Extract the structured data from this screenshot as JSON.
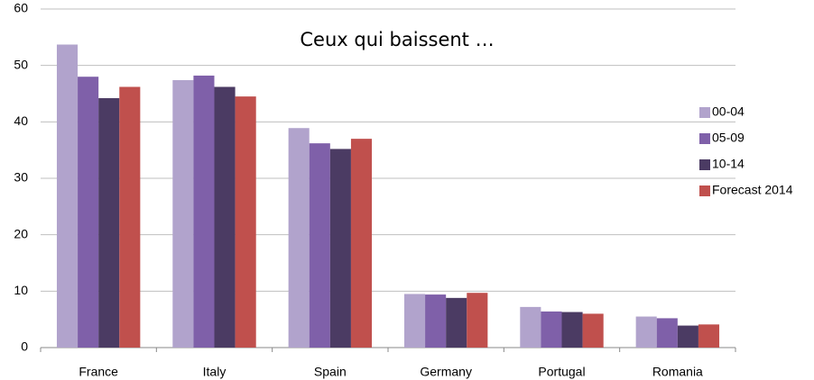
{
  "chart_data": {
    "type": "bar",
    "title": "Ceux qui baissent …",
    "categories": [
      "France",
      "Italy",
      "Spain",
      "Germany",
      "Portugal",
      "Romania"
    ],
    "series": [
      {
        "name": "00-04",
        "color": "#b1a3cc",
        "values": [
          53.7,
          47.4,
          38.9,
          9.5,
          7.2,
          5.5
        ]
      },
      {
        "name": "05-09",
        "color": "#7f60a9",
        "values": [
          48.0,
          48.2,
          36.2,
          9.4,
          6.4,
          5.2
        ]
      },
      {
        "name": "10-14",
        "color": "#4b3b63",
        "values": [
          44.2,
          46.2,
          35.2,
          8.8,
          6.3,
          3.9
        ]
      },
      {
        "name": "Forecast 2014",
        "color": "#c0504d",
        "values": [
          46.2,
          44.5,
          37.0,
          9.7,
          6.0,
          4.1
        ]
      }
    ],
    "ylim": [
      0,
      60
    ],
    "yticks": [
      0,
      10,
      20,
      30,
      40,
      50,
      60
    ],
    "grid": true,
    "legend": "right"
  }
}
